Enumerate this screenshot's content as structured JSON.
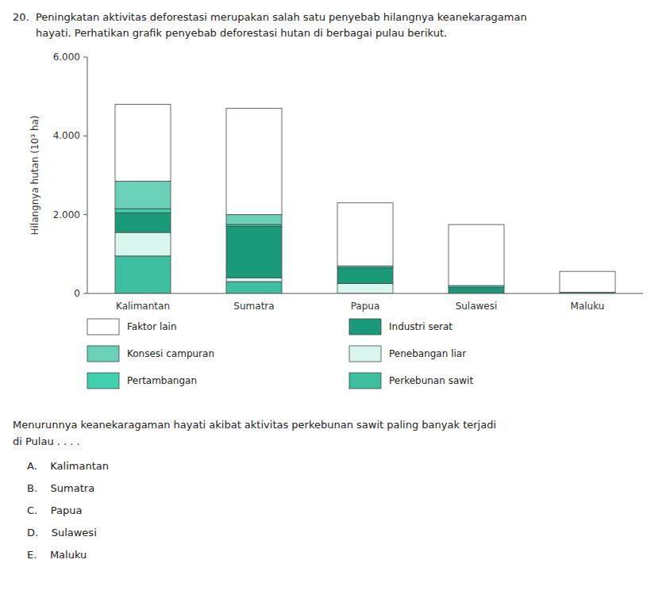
{
  "chart_data": {
    "type": "bar",
    "stacked": true,
    "title": "20.  Peningkatan aktivitas deforestasi merupakan salah satu penyebab hilangnya keanekaragaman",
    "subtitle": "       hayati. Perhatikan grafik penyebab deforestasi hutan di berbagai pulau berikut.",
    "categories": [
      "Kalimantan",
      "Sumatra",
      "Papua",
      "Sulawesi",
      "Maluku"
    ],
    "series": [
      {
        "name": "Perkebunan sawit",
        "color": "#3dbfa0",
        "values": [
          950,
          300,
          0,
          0,
          30
        ]
      },
      {
        "name": "Penebangan liar",
        "color": "#d8f5ee",
        "values": [
          600,
          100,
          250,
          0,
          0
        ]
      },
      {
        "name": "Industri serat",
        "color": "#1a9a78",
        "values": [
          500,
          1300,
          400,
          150,
          0
        ]
      },
      {
        "name": "Pertambangan",
        "color": "#40d0b0",
        "values": [
          100,
          50,
          50,
          50,
          0
        ]
      },
      {
        "name": "Konsesi campuran",
        "color": "#6ad0b8",
        "values": [
          700,
          250,
          0,
          0,
          0
        ]
      },
      {
        "name": "Faktor lain",
        "color": "#ffffff",
        "values": [
          1950,
          2700,
          1600,
          1550,
          530
        ]
      }
    ],
    "ylabel": "Hilangnya hutan (10³ ha)",
    "ylim": [
      0,
      6000
    ],
    "yticks": [
      0,
      {
        "value": 2000,
        "label": "2.000"
      },
      {
        "value": 4000,
        "label": "4.000"
      },
      {
        "value": 6000,
        "label": "6.000"
      }
    ],
    "grid": false,
    "legend": "bottom",
    "annotations": [
      "Menurunnya keanekaragaman hayati akibat aktivitas perkebunan sawit paling banyak terjadi",
      "di Pulau . . . .",
      "A.    Kalimantan",
      "B.    Sumatra",
      "C.    Papua",
      "D.    Sulawesi",
      "E.    Maluku"
    ]
  }
}
